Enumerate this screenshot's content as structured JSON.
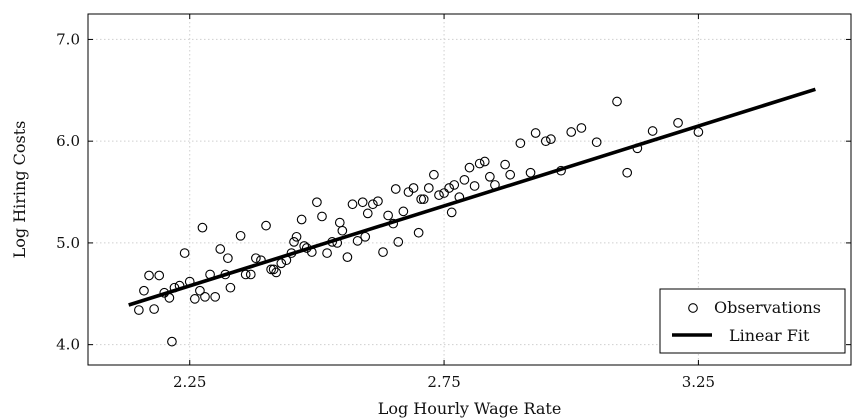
{
  "chart_data": {
    "type": "scatter",
    "title": "",
    "xlabel": "Log Hourly Wage Rate",
    "ylabel": "Log Hiring Costs",
    "xlim": [
      2.05,
      3.55
    ],
    "ylim": [
      3.8,
      7.25
    ],
    "xticks": [
      2.25,
      2.75,
      3.25
    ],
    "yticks": [
      4.0,
      5.0,
      6.0,
      7.0
    ],
    "xtick_labels": [
      "2.25",
      "2.75",
      "3.25"
    ],
    "ytick_labels": [
      "4.0",
      "5.0",
      "6.0",
      "7.0"
    ],
    "grid": true,
    "legend_position": "bottom-right",
    "series": [
      {
        "name": "Observations",
        "kind": "scatter",
        "marker": "open-circle",
        "color": "#000000",
        "points": [
          [
            2.15,
            4.34
          ],
          [
            2.16,
            4.53
          ],
          [
            2.17,
            4.68
          ],
          [
            2.18,
            4.35
          ],
          [
            2.19,
            4.68
          ],
          [
            2.2,
            4.51
          ],
          [
            2.21,
            4.46
          ],
          [
            2.215,
            4.03
          ],
          [
            2.22,
            4.56
          ],
          [
            2.23,
            4.58
          ],
          [
            2.24,
            4.9
          ],
          [
            2.25,
            4.62
          ],
          [
            2.26,
            4.45
          ],
          [
            2.27,
            4.53
          ],
          [
            2.275,
            5.15
          ],
          [
            2.28,
            4.47
          ],
          [
            2.29,
            4.69
          ],
          [
            2.3,
            4.47
          ],
          [
            2.31,
            4.94
          ],
          [
            2.32,
            4.69
          ],
          [
            2.325,
            4.85
          ],
          [
            2.33,
            4.56
          ],
          [
            2.35,
            5.07
          ],
          [
            2.36,
            4.69
          ],
          [
            2.37,
            4.69
          ],
          [
            2.38,
            4.85
          ],
          [
            2.39,
            4.83
          ],
          [
            2.4,
            5.17
          ],
          [
            2.41,
            4.74
          ],
          [
            2.415,
            4.74
          ],
          [
            2.42,
            4.71
          ],
          [
            2.43,
            4.8
          ],
          [
            2.44,
            4.83
          ],
          [
            2.45,
            4.9
          ],
          [
            2.455,
            5.01
          ],
          [
            2.46,
            5.06
          ],
          [
            2.47,
            5.23
          ],
          [
            2.475,
            4.97
          ],
          [
            2.48,
            4.95
          ],
          [
            2.49,
            4.91
          ],
          [
            2.5,
            5.4
          ],
          [
            2.51,
            5.26
          ],
          [
            2.52,
            4.9
          ],
          [
            2.53,
            5.01
          ],
          [
            2.54,
            5.0
          ],
          [
            2.545,
            5.2
          ],
          [
            2.55,
            5.12
          ],
          [
            2.56,
            4.86
          ],
          [
            2.57,
            5.38
          ],
          [
            2.58,
            5.02
          ],
          [
            2.59,
            5.4
          ],
          [
            2.595,
            5.06
          ],
          [
            2.6,
            5.29
          ],
          [
            2.61,
            5.38
          ],
          [
            2.62,
            5.41
          ],
          [
            2.63,
            4.91
          ],
          [
            2.64,
            5.27
          ],
          [
            2.65,
            5.19
          ],
          [
            2.655,
            5.53
          ],
          [
            2.66,
            5.01
          ],
          [
            2.67,
            5.31
          ],
          [
            2.68,
            5.5
          ],
          [
            2.69,
            5.54
          ],
          [
            2.7,
            5.1
          ],
          [
            2.705,
            5.43
          ],
          [
            2.71,
            5.43
          ],
          [
            2.72,
            5.54
          ],
          [
            2.73,
            5.67
          ],
          [
            2.74,
            5.47
          ],
          [
            2.75,
            5.49
          ],
          [
            2.76,
            5.54
          ],
          [
            2.765,
            5.3
          ],
          [
            2.77,
            5.57
          ],
          [
            2.78,
            5.45
          ],
          [
            2.79,
            5.62
          ],
          [
            2.8,
            5.74
          ],
          [
            2.81,
            5.56
          ],
          [
            2.82,
            5.78
          ],
          [
            2.83,
            5.8
          ],
          [
            2.84,
            5.65
          ],
          [
            2.85,
            5.57
          ],
          [
            2.87,
            5.77
          ],
          [
            2.88,
            5.67
          ],
          [
            2.9,
            5.98
          ],
          [
            2.92,
            5.69
          ],
          [
            2.93,
            6.08
          ],
          [
            2.95,
            6.0
          ],
          [
            2.96,
            6.02
          ],
          [
            2.98,
            5.71
          ],
          [
            3.0,
            6.09
          ],
          [
            3.02,
            6.13
          ],
          [
            3.05,
            5.99
          ],
          [
            3.09,
            6.39
          ],
          [
            3.11,
            5.69
          ],
          [
            3.13,
            5.93
          ],
          [
            3.16,
            6.1
          ],
          [
            3.21,
            6.18
          ],
          [
            3.25,
            6.09
          ]
        ]
      },
      {
        "name": "Linear Fit",
        "kind": "line",
        "color": "#000000",
        "x": [
          2.13,
          3.48
        ],
        "y": [
          4.39,
          6.51
        ]
      }
    ]
  }
}
